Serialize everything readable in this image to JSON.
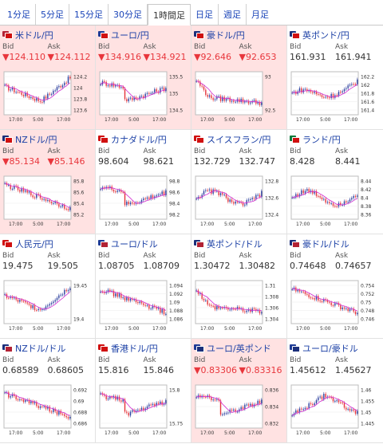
{
  "tabs": [
    {
      "label": "1分足",
      "active": false
    },
    {
      "label": "5分足",
      "active": false
    },
    {
      "label": "15分足",
      "active": false
    },
    {
      "label": "30分足",
      "active": false
    },
    {
      "label": "1時間足",
      "active": true
    },
    {
      "label": "日足",
      "active": false
    },
    {
      "label": "週足",
      "active": false
    },
    {
      "label": "月足",
      "active": false
    }
  ],
  "labels": {
    "bid": "Bid",
    "ask": "Ask"
  },
  "colors": {
    "up": "#2b3f9e",
    "down": "#e5333a",
    "ma": "#d22bd1",
    "change_down_bg": "#ffe2e2"
  },
  "pairs": [
    {
      "name": "米ドル/円",
      "icon": "us-jp-flag-icon",
      "bid": "▼124.110",
      "ask": "▼124.112",
      "change": "down",
      "yticks": [
        "124.2",
        "124",
        "123.8",
        "123.6"
      ],
      "xticks": [
        "17:00",
        "5:00",
        "17:00"
      ],
      "trend": "down-up"
    },
    {
      "name": "ユーロ/円",
      "icon": "eu-jp-flag-icon",
      "bid": "▼134.916",
      "ask": "▼134.921",
      "change": "down",
      "yticks": [
        "135.5",
        "135",
        "134.5"
      ],
      "xticks": [
        "17:00",
        "5:00",
        "17:00"
      ],
      "trend": "drop-recover"
    },
    {
      "name": "豪ドル/円",
      "icon": "au-jp-flag-icon",
      "bid": "▼92.646",
      "ask": "▼92.653",
      "change": "down",
      "yticks": [
        "93",
        "92.5"
      ],
      "xticks": [
        "17:00",
        "5:00",
        "17:00"
      ],
      "trend": "drop-flat"
    },
    {
      "name": "英ポンド/円",
      "icon": "gb-jp-flag-icon",
      "bid": "161.931",
      "ask": "161.941",
      "change": "none",
      "yticks": [
        "162.2",
        "162",
        "161.8",
        "161.6",
        "161.4"
      ],
      "xticks": [
        "17:00",
        "5:00",
        "17:00"
      ],
      "trend": "flat-spike"
    },
    {
      "name": "NZドル/円",
      "icon": "nz-jp-flag-icon",
      "bid": "▼85.134",
      "ask": "▼85.146",
      "change": "down",
      "yticks": [
        "85.8",
        "85.6",
        "85.4",
        "85.2"
      ],
      "xticks": [
        "17:00",
        "5:00",
        "17:00"
      ],
      "trend": "down"
    },
    {
      "name": "カナダドル/円",
      "icon": "ca-jp-flag-icon",
      "bid": "98.604",
      "ask": "98.621",
      "change": "none",
      "yticks": [
        "98.8",
        "98.6",
        "98.4",
        "98.2"
      ],
      "xticks": [
        "17:00",
        "5:00",
        "17:00"
      ],
      "trend": "drop-recover"
    },
    {
      "name": "スイスフラン/円",
      "icon": "ch-jp-flag-icon",
      "bid": "132.729",
      "ask": "132.747",
      "change": "none",
      "yticks": [
        "132.8",
        "132.6",
        "132.4"
      ],
      "xticks": [
        "17:00",
        "5:00",
        "17:00"
      ],
      "trend": "wave"
    },
    {
      "name": "ランド/円",
      "icon": "za-jp-flag-icon",
      "bid": "8.428",
      "ask": "8.441",
      "change": "none",
      "yticks": [
        "8.44",
        "8.42",
        "8.4",
        "8.38",
        "8.36"
      ],
      "xticks": [
        "17:00",
        "5:00",
        "17:00"
      ],
      "trend": "wave"
    },
    {
      "name": "人民元/円",
      "icon": "cn-jp-flag-icon",
      "bid": "19.475",
      "ask": "19.505",
      "change": "none",
      "yticks": [
        "19.45",
        "19.4"
      ],
      "xticks": [
        "17:00",
        "5:00",
        "17:00"
      ],
      "trend": "down-up"
    },
    {
      "name": "ユーロ/ドル",
      "icon": "eu-us-flag-icon",
      "bid": "1.08705",
      "ask": "1.08709",
      "change": "none",
      "yticks": [
        "1.094",
        "1.092",
        "1.09",
        "1.088",
        "1.086"
      ],
      "xticks": [
        "17:00",
        "5:00",
        "17:00"
      ],
      "trend": "down"
    },
    {
      "name": "英ポンド/ドル",
      "icon": "gb-us-flag-icon",
      "bid": "1.30472",
      "ask": "1.30482",
      "change": "none",
      "yticks": [
        "1.31",
        "1.308",
        "1.306",
        "1.304"
      ],
      "xticks": [
        "17:00",
        "5:00",
        "17:00"
      ],
      "trend": "drop-flat"
    },
    {
      "name": "豪ドル/ドル",
      "icon": "au-us-flag-icon",
      "bid": "0.74648",
      "ask": "0.74657",
      "change": "none",
      "yticks": [
        "0.754",
        "0.752",
        "0.75",
        "0.748",
        "0.746"
      ],
      "xticks": [
        "17:00",
        "5:00",
        "17:00"
      ],
      "trend": "down"
    },
    {
      "name": "NZドル/ドル",
      "icon": "nz-us-flag-icon",
      "bid": "0.68589",
      "ask": "0.68605",
      "change": "none",
      "yticks": [
        "0.692",
        "0.69",
        "0.688",
        "0.686"
      ],
      "xticks": [
        "17:00",
        "5:00",
        "17:00"
      ],
      "trend": "down"
    },
    {
      "name": "香港ドル/円",
      "icon": "hk-jp-flag-icon",
      "bid": "15.816",
      "ask": "15.846",
      "change": "none",
      "yticks": [
        "15.8",
        "15.75"
      ],
      "xticks": [
        "17:00",
        "5:00",
        "17:00"
      ],
      "trend": "drop-recover"
    },
    {
      "name": "ユーロ/英ポンド",
      "icon": "eu-gb-flag-icon",
      "bid": "▼0.83306",
      "ask": "▼0.83316",
      "change": "down",
      "yticks": [
        "0.836",
        "0.834",
        "0.832"
      ],
      "xticks": [
        "17:00",
        "5:00",
        "17:00"
      ],
      "trend": "drop-recover"
    },
    {
      "name": "ユーロ/豪ドル",
      "icon": "eu-au-flag-icon",
      "bid": "1.45612",
      "ask": "1.45627",
      "change": "none",
      "yticks": [
        "1.46",
        "1.455",
        "1.45",
        "1.445"
      ],
      "xticks": [
        "17:00",
        "5:00",
        "17:00"
      ],
      "trend": "up-down"
    }
  ]
}
